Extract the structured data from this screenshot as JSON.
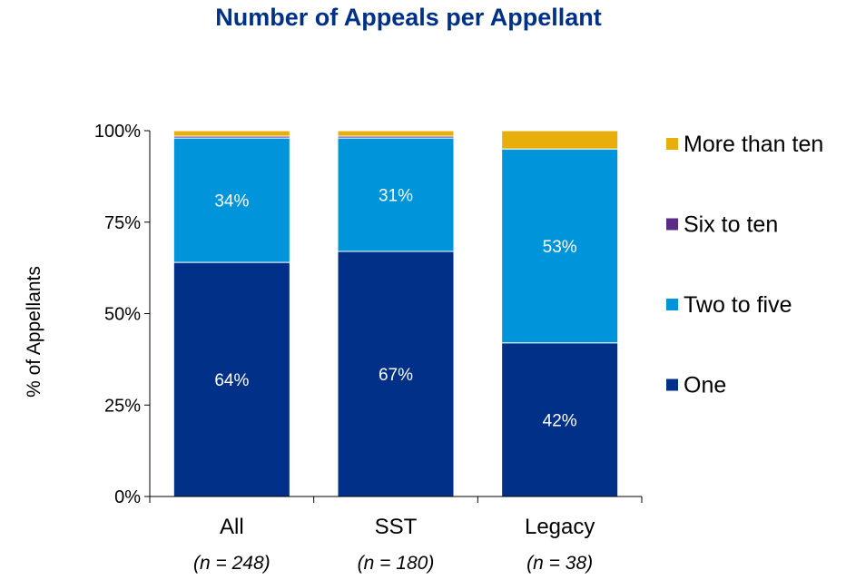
{
  "chart_data": {
    "type": "bar",
    "stacked": true,
    "title": "Number of Appeals per Appellant",
    "xlabel": "",
    "ylabel": "% of Appellants",
    "ylim": [
      0,
      100
    ],
    "yticks": [
      "0%",
      "25%",
      "50%",
      "75%",
      "100%"
    ],
    "categories": [
      "All",
      "SST",
      "Legacy"
    ],
    "sample_sizes": [
      "(n = 248)",
      "(n = 180)",
      "(n = 38)"
    ],
    "series": [
      {
        "name": "One",
        "color": "#003087",
        "values": [
          64,
          67,
          42
        ],
        "labels": [
          "64%",
          "67%",
          "42%"
        ]
      },
      {
        "name": "Two to five",
        "color": "#0095DA",
        "values": [
          34,
          31,
          53
        ],
        "labels": [
          "34%",
          "31%",
          "53%"
        ]
      },
      {
        "name": "Six to ten",
        "color": "#5B2C86",
        "values": [
          0.5,
          0.5,
          0
        ],
        "labels": [
          "",
          "",
          ""
        ]
      },
      {
        "name": "More than ten",
        "color": "#E8AE0C",
        "values": [
          1.5,
          1.5,
          5
        ],
        "labels": [
          "",
          "",
          ""
        ]
      }
    ],
    "legend": [
      "More than ten",
      "Six to ten",
      "Two to five",
      "One"
    ],
    "legend_position": "right"
  }
}
